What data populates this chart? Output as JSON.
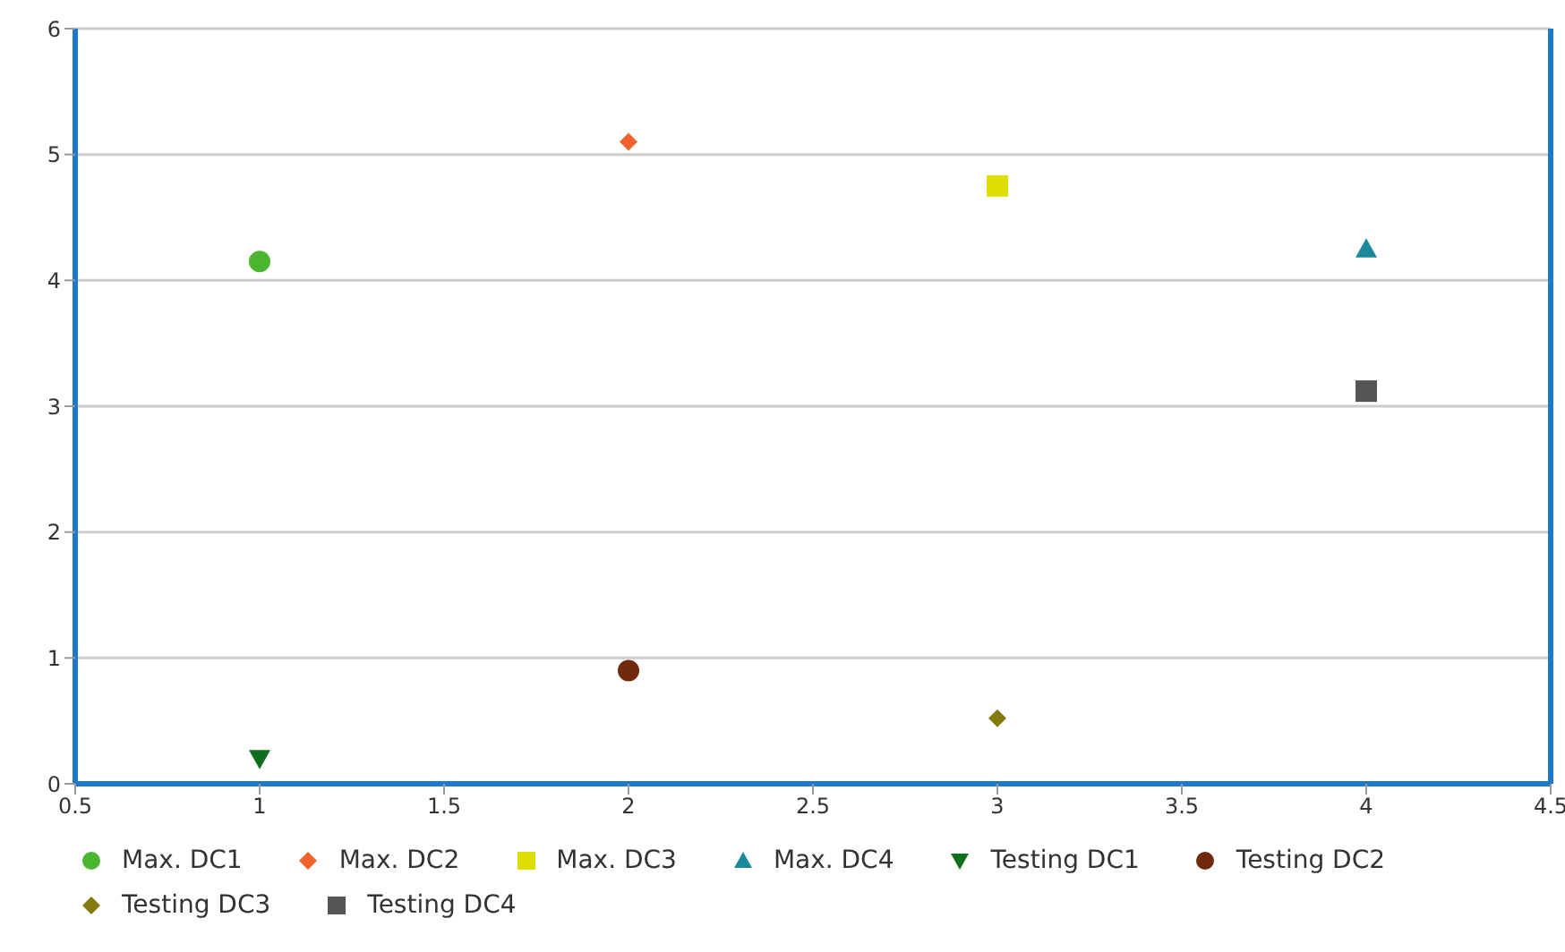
{
  "chart_data": {
    "type": "scatter",
    "xlim": [
      0.5,
      4.5
    ],
    "xticks": [
      0.5,
      1,
      1.5,
      2,
      2.5,
      3,
      3.5,
      4,
      4.5
    ],
    "ylim": [
      0,
      6
    ],
    "yticks": [
      0,
      1,
      2,
      3,
      4,
      5,
      6
    ],
    "grid": "y",
    "legend": "bottom",
    "series": [
      {
        "name": "Max. DC1",
        "color": "#4cb530",
        "marker": "circle",
        "x": [
          1
        ],
        "values": [
          4.15
        ]
      },
      {
        "name": "Max. DC2",
        "color": "#f0622d",
        "marker": "diamond",
        "x": [
          2
        ],
        "values": [
          5.1
        ]
      },
      {
        "name": "Max. DC3",
        "color": "#dede00",
        "marker": "square",
        "x": [
          3
        ],
        "values": [
          4.75
        ]
      },
      {
        "name": "Max. DC4",
        "color": "#1a8a9a",
        "marker": "triangle",
        "x": [
          4
        ],
        "values": [
          4.25
        ]
      },
      {
        "name": "Testing DC1",
        "color": "#0f6e1e",
        "marker": "triangle-down",
        "x": [
          1
        ],
        "values": [
          0.2
        ]
      },
      {
        "name": "Testing DC2",
        "color": "#6e2a0a",
        "marker": "circle",
        "x": [
          2
        ],
        "values": [
          0.9
        ]
      },
      {
        "name": "Testing DC3",
        "color": "#857a10",
        "marker": "diamond",
        "x": [
          3
        ],
        "values": [
          0.52
        ]
      },
      {
        "name": "Testing DC4",
        "color": "#555555",
        "marker": "square",
        "x": [
          4
        ],
        "values": [
          3.12
        ]
      }
    ]
  }
}
